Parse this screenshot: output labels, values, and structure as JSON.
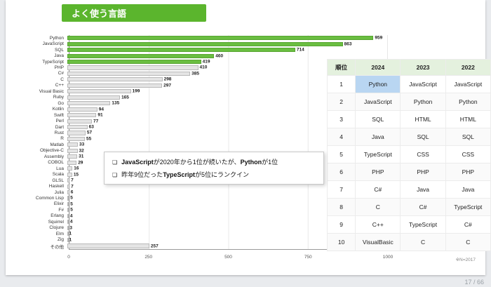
{
  "slide": {
    "title": "よく使う言語",
    "note": "※N=2017",
    "page": "17 / 66"
  },
  "chart_data": {
    "type": "bar",
    "orientation": "horizontal",
    "title": "よく使う言語",
    "xlabel": "",
    "ylabel": "",
    "xlim": [
      0,
      1000
    ],
    "xticks": [
      0,
      250,
      500,
      750,
      1000
    ],
    "grid": true,
    "legend": "none",
    "highlight_count": 5,
    "colors": {
      "highlight": "#6abe41",
      "default": "#e4e4e4"
    },
    "categories": [
      "Python",
      "JavaScript",
      "SQL",
      "Java",
      "TypeScript",
      "PHP",
      "C#",
      "C",
      "C++",
      "Visual Basic",
      "Ruby",
      "Go",
      "Kotlin",
      "Swift",
      "Perl",
      "Dart",
      "Rust",
      "R",
      "Matlab",
      "Objective-C",
      "Assembly",
      "COBOL",
      "Lua",
      "Scala",
      "GLSL",
      "Haskell",
      "Julia",
      "Common Lisp",
      "Elixir",
      "F#",
      "Erlang",
      "Squirrel",
      "Clojure",
      "Elm",
      "Zig",
      "その他"
    ],
    "values": [
      959,
      863,
      714,
      460,
      419,
      410,
      385,
      298,
      297,
      199,
      165,
      135,
      94,
      91,
      77,
      63,
      57,
      55,
      33,
      32,
      31,
      29,
      16,
      15,
      7,
      7,
      6,
      5,
      5,
      5,
      4,
      4,
      3,
      1,
      1,
      257
    ]
  },
  "callout": {
    "marker": "❏",
    "bullets": [
      {
        "segments": [
          {
            "text": "JavaScript",
            "bold": true
          },
          {
            "text": "が2020年から1位が続いたが、",
            "bold": false
          },
          {
            "text": "Python",
            "bold": true
          },
          {
            "text": "が1位",
            "bold": false
          }
        ]
      },
      {
        "segments": [
          {
            "text": "昨年9位だった",
            "bold": false
          },
          {
            "text": "TypeScript",
            "bold": true
          },
          {
            "text": "が5位にランクイン",
            "bold": false
          }
        ]
      }
    ]
  },
  "table": {
    "headers": [
      "順位",
      "2024",
      "2023",
      "2022"
    ],
    "rows": [
      [
        "1",
        "Python",
        "JavaScript",
        "JavaScript"
      ],
      [
        "2",
        "JavaScript",
        "Python",
        "Python"
      ],
      [
        "3",
        "SQL",
        "HTML",
        "HTML"
      ],
      [
        "4",
        "Java",
        "SQL",
        "SQL"
      ],
      [
        "5",
        "TypeScript",
        "CSS",
        "CSS"
      ],
      [
        "6",
        "PHP",
        "PHP",
        "PHP"
      ],
      [
        "7",
        "C#",
        "Java",
        "Java"
      ],
      [
        "8",
        "C",
        "C#",
        "TypeScript"
      ],
      [
        "9",
        "C++",
        "TypeScript",
        "C#"
      ],
      [
        "10",
        "VisualBasic",
        "C",
        "C"
      ]
    ],
    "highlight": {
      "row": 0,
      "col": 1
    }
  }
}
